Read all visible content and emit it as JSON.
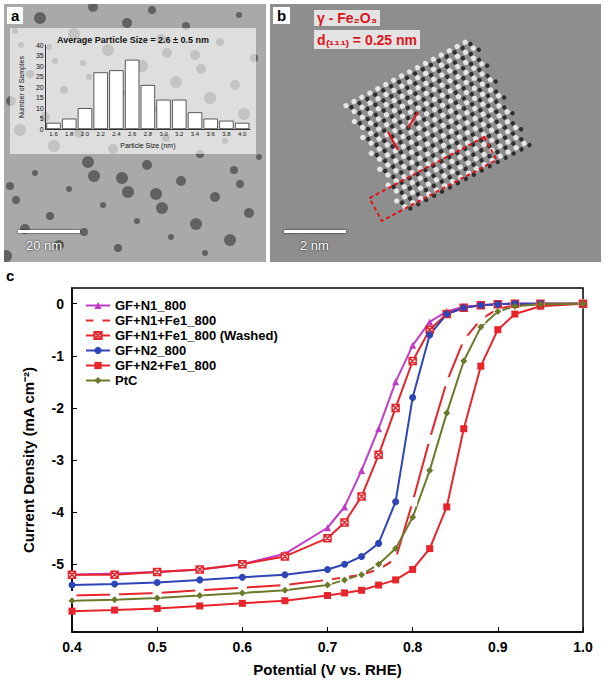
{
  "images": [
    {
      "label": "a",
      "scale_bar": "20 nm"
    },
    {
      "label": "b",
      "scale_bar": "2 nm",
      "phase": "γ - Fe₂O₃",
      "spacing": "d₍₁₁₁₎ = 0.25 nm"
    }
  ],
  "chart_data": [
    {
      "type": "bar",
      "title": "Average Particle Size = 2.6 ± 0.5 nm",
      "x_label": "Particle Size (nm)",
      "y_label": "Number of Samples",
      "categories": [
        "1.6",
        "1.8",
        "2.0",
        "2.2",
        "2.4",
        "2.6",
        "2.8",
        "3.0",
        "3.2",
        "3.4",
        "3.6",
        "3.8",
        "4.0"
      ],
      "values": [
        3,
        5,
        10,
        27,
        28,
        33,
        21,
        14,
        14,
        8,
        5,
        4,
        3
      ],
      "color": "#ffffff",
      "ylim": [
        0,
        40
      ],
      "yticks": [
        0,
        5,
        10,
        15,
        20,
        25,
        30,
        35,
        40
      ]
    },
    {
      "type": "line",
      "label": "c",
      "x_label": "Potential (V vs. RHE)",
      "y_label": "Current Density (mA cm⁻²)",
      "x": [
        0.4,
        0.45,
        0.5,
        0.55,
        0.6,
        0.65,
        0.7,
        0.72,
        0.74,
        0.76,
        0.78,
        0.8,
        0.82,
        0.84,
        0.86,
        0.88,
        0.9,
        0.92,
        0.95,
        1.0
      ],
      "series": [
        {
          "name": "GF+N1_800",
          "color": "#c13cc8",
          "marker": "triangle",
          "values": [
            -5.2,
            -5.18,
            -5.15,
            -5.1,
            -5.0,
            -4.8,
            -4.3,
            -3.9,
            -3.2,
            -2.4,
            -1.5,
            -0.8,
            -0.35,
            -0.15,
            -0.06,
            -0.03,
            -0.01,
            0,
            0,
            0
          ]
        },
        {
          "name": "GF+N1+Fe1_800",
          "color": "#e8242b",
          "marker": "open_square",
          "values": [
            -5.6,
            -5.58,
            -5.55,
            -5.5,
            -5.45,
            -5.4,
            -5.3,
            -5.25,
            -5.2,
            -5.1,
            -4.9,
            -3.8,
            -2.6,
            -1.5,
            -0.7,
            -0.3,
            -0.1,
            -0.03,
            0,
            0
          ]
        },
        {
          "name": "GF+N1+Fe1_800 (Washed)",
          "color": "#e8242b",
          "marker": "x",
          "values": [
            -5.2,
            -5.2,
            -5.15,
            -5.1,
            -5.0,
            -4.85,
            -4.5,
            -4.2,
            -3.7,
            -2.9,
            -2.0,
            -1.1,
            -0.5,
            -0.2,
            -0.08,
            -0.03,
            -0.01,
            0,
            0,
            0
          ]
        },
        {
          "name": "GF+N2_800",
          "color": "#2e45b8",
          "marker": "circle",
          "values": [
            -5.4,
            -5.38,
            -5.35,
            -5.3,
            -5.25,
            -5.2,
            -5.1,
            -5.0,
            -4.85,
            -4.6,
            -3.8,
            -1.8,
            -0.6,
            -0.2,
            -0.08,
            -0.03,
            -0.01,
            0,
            0,
            0
          ]
        },
        {
          "name": "GF+N2+Fe1_800",
          "color": "#e8242b",
          "marker": "square",
          "values": [
            -5.9,
            -5.88,
            -5.85,
            -5.8,
            -5.75,
            -5.7,
            -5.6,
            -5.55,
            -5.5,
            -5.4,
            -5.3,
            -5.1,
            -4.7,
            -3.9,
            -2.4,
            -1.2,
            -0.5,
            -0.2,
            -0.05,
            0
          ]
        },
        {
          "name": "PtC",
          "color": "#6b7a2a",
          "marker": "diamond",
          "values": [
            -5.7,
            -5.68,
            -5.65,
            -5.6,
            -5.55,
            -5.5,
            -5.4,
            -5.3,
            -5.2,
            -5.0,
            -4.7,
            -4.1,
            -3.2,
            -2.1,
            -1.1,
            -0.45,
            -0.15,
            -0.05,
            -0.01,
            0
          ]
        }
      ],
      "xlim": [
        0.4,
        1.0
      ],
      "xticks": [
        0.4,
        0.5,
        0.6,
        0.7,
        0.8,
        0.9,
        {
          "value": 1,
          "label": "1.0"
        }
      ],
      "ylim": [
        -6.3,
        0.3
      ],
      "yticks": [
        0,
        -1,
        -2,
        -3,
        -4,
        -5
      ],
      "legend": "upper left"
    }
  ]
}
